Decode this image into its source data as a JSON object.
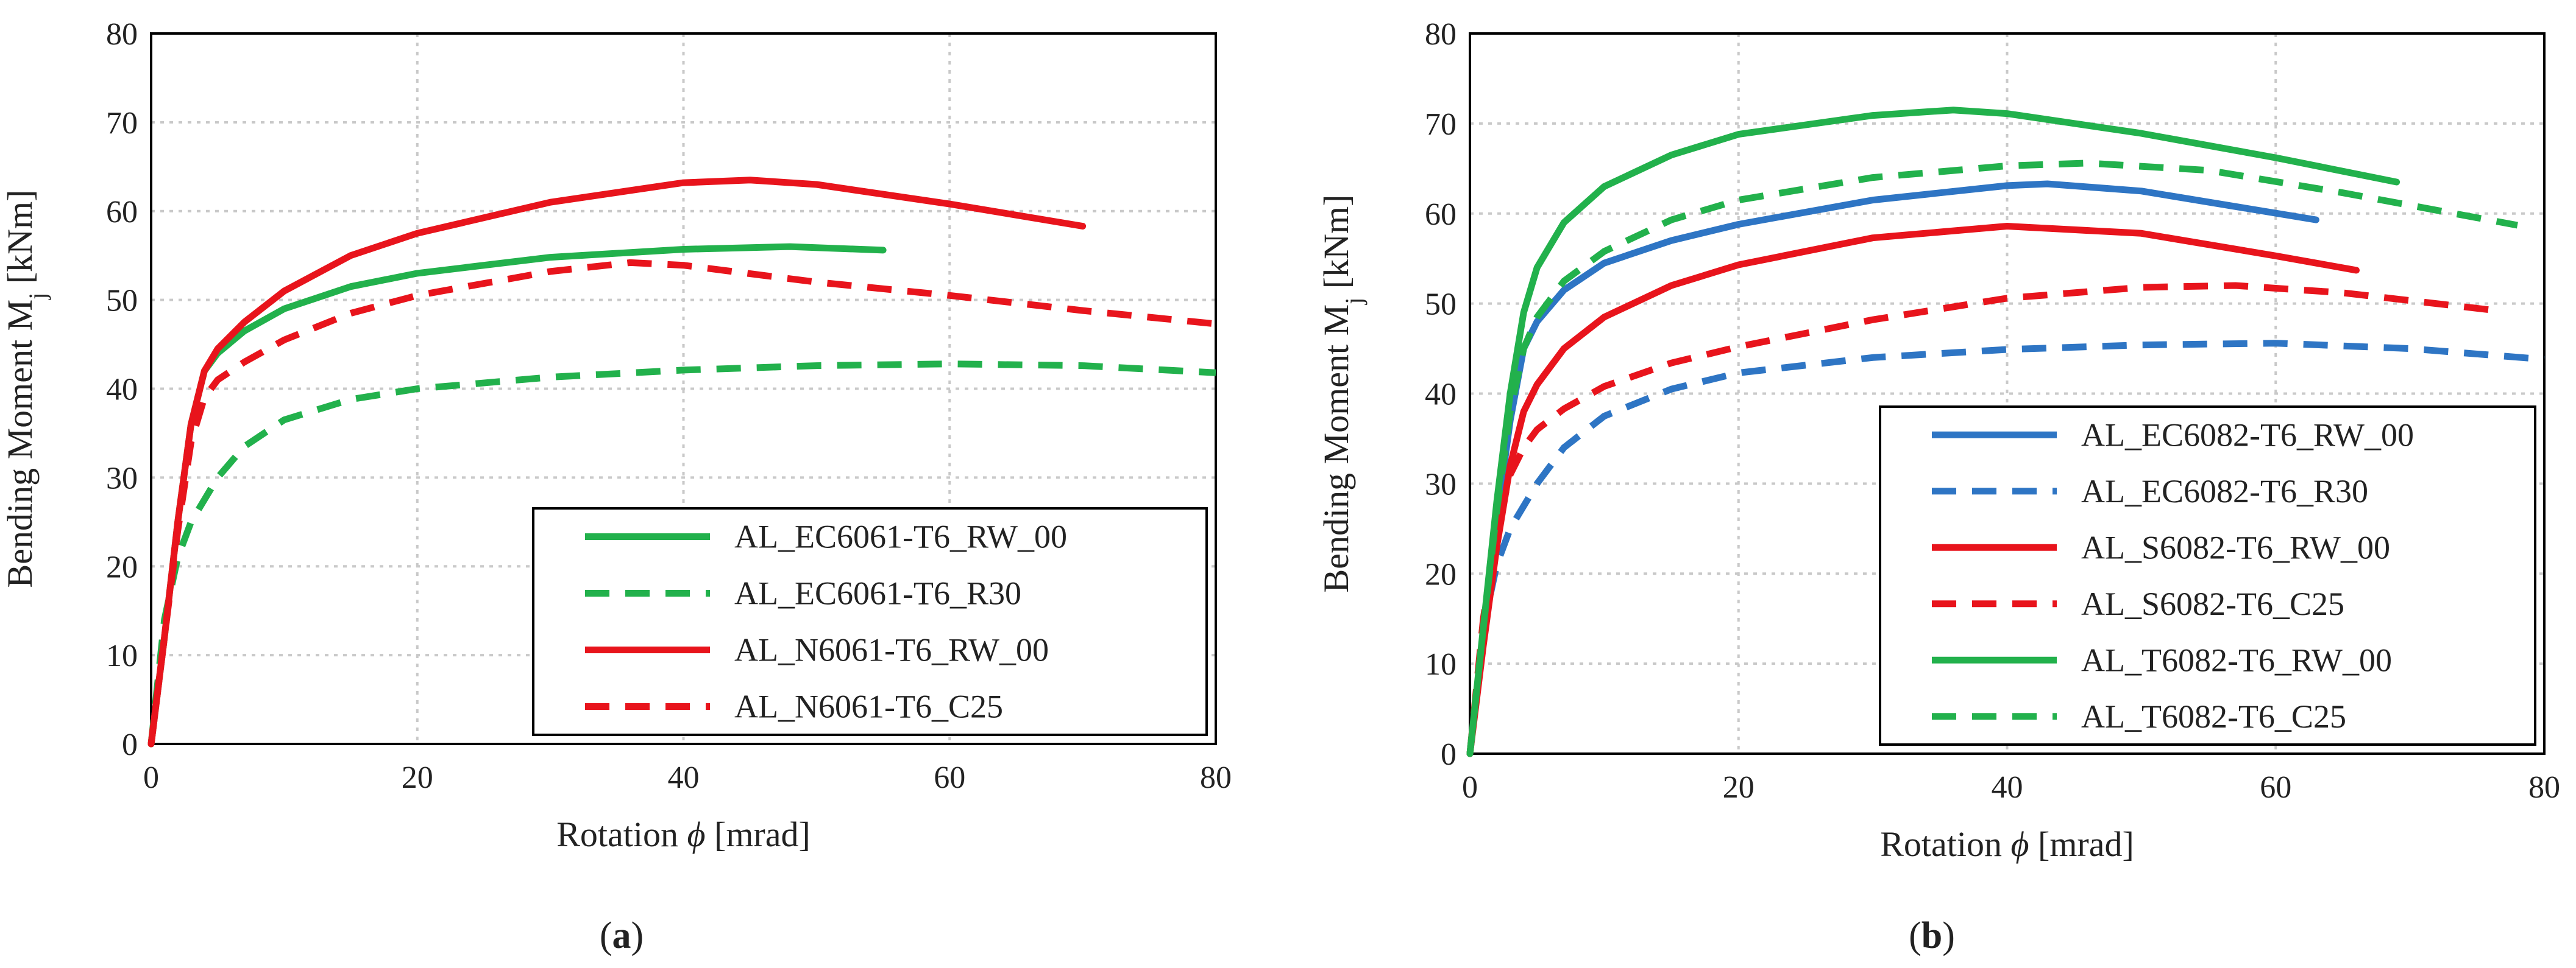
{
  "chart_data": [
    {
      "panel_label": "(a)",
      "caption_letter": "a",
      "type": "line",
      "xlabel": "Rotation ϕ [mrad]",
      "xlabel_parts": [
        "Rotation ",
        "ϕ",
        " [mrad]"
      ],
      "ylabel": "Bending Moment Mj [kNm]",
      "ylabel_parts": [
        "Bending Moment M",
        "j",
        " [kNm]"
      ],
      "xlim": [
        0,
        80
      ],
      "ylim": [
        0,
        80
      ],
      "xticks": [
        0,
        20,
        40,
        60,
        80
      ],
      "xtick_labels": [
        "0",
        "20",
        "40",
        "60",
        "80"
      ],
      "yticks": [
        0,
        10,
        20,
        30,
        40,
        50,
        60,
        70,
        80
      ],
      "ytick_labels": [
        "0",
        "10",
        "20",
        "30",
        "40",
        "50",
        "60",
        "70",
        "80"
      ],
      "grid": true,
      "legend_position": "bottom-right",
      "series": [
        {
          "name": "AL_EC6061-T6_RW_00",
          "color": "#22b14c",
          "dash": "solid",
          "x": [
            0,
            1,
            2,
            3,
            4,
            5,
            7,
            10,
            15,
            20,
            30,
            40,
            48,
            55
          ],
          "y": [
            0,
            12,
            25,
            36,
            42,
            44,
            46.5,
            49,
            51.5,
            53,
            54.8,
            55.7,
            56,
            55.6
          ]
        },
        {
          "name": "AL_EC6061-T6_R30",
          "color": "#22b14c",
          "dash": "dashed",
          "x": [
            0,
            1,
            2,
            3,
            5,
            7,
            10,
            15,
            20,
            30,
            40,
            50,
            60,
            70,
            80
          ],
          "y": [
            0,
            14,
            21,
            25,
            30,
            33.5,
            36.5,
            38.8,
            40,
            41.3,
            42.1,
            42.6,
            42.8,
            42.6,
            41.8
          ]
        },
        {
          "name": "AL_N6061-T6_RW_00",
          "color": "#e8141c",
          "dash": "solid",
          "x": [
            0,
            1,
            2,
            3,
            4,
            5,
            7,
            10,
            15,
            20,
            30,
            40,
            45,
            50,
            60,
            70
          ],
          "y": [
            0,
            12,
            25,
            36,
            42,
            44.5,
            47.5,
            51,
            55,
            57.5,
            61,
            63.2,
            63.5,
            63,
            60.8,
            58.3
          ]
        },
        {
          "name": "AL_N6061-T6_C25",
          "color": "#e8141c",
          "dash": "dashed",
          "x": [
            0,
            1,
            2,
            3,
            4,
            5,
            7,
            10,
            15,
            20,
            30,
            36,
            40,
            50,
            60,
            70,
            80
          ],
          "y": [
            0,
            12,
            24,
            34,
            39,
            41,
            43,
            45.5,
            48.5,
            50.5,
            53.2,
            54.2,
            53.9,
            52,
            50.5,
            48.8,
            47.3
          ]
        }
      ]
    },
    {
      "panel_label": "(b)",
      "caption_letter": "b",
      "type": "line",
      "xlabel": "Rotation ϕ [mrad]",
      "xlabel_parts": [
        "Rotation ",
        "ϕ",
        " [mrad]"
      ],
      "ylabel": "Bending Moment Mj [kNm]",
      "ylabel_parts": [
        "Bending Moment M",
        "j",
        " [kNm]"
      ],
      "xlim": [
        0,
        80
      ],
      "ylim": [
        0,
        80
      ],
      "xticks": [
        0,
        20,
        40,
        60,
        80
      ],
      "xtick_labels": [
        "0",
        "20",
        "40",
        "60",
        "80"
      ],
      "yticks": [
        0,
        10,
        20,
        30,
        40,
        50,
        60,
        70,
        80
      ],
      "ytick_labels": [
        "0",
        "10",
        "20",
        "30",
        "40",
        "50",
        "60",
        "70",
        "80"
      ],
      "grid": true,
      "legend_position": "bottom-right",
      "series": [
        {
          "name": "AL_EC6082-T6_RW_00",
          "color": "#2e75c4",
          "dash": "solid",
          "x": [
            0,
            1,
            2,
            3,
            4,
            5,
            7,
            10,
            15,
            20,
            30,
            40,
            43,
            50,
            63
          ],
          "y": [
            0,
            13,
            26,
            37,
            45,
            48,
            51.5,
            54.5,
            57,
            58.8,
            61.5,
            63.1,
            63.3,
            62.5,
            59.3
          ]
        },
        {
          "name": "AL_EC6082-T6_R30",
          "color": "#2e75c4",
          "dash": "dashed",
          "x": [
            0,
            1,
            2,
            3,
            5,
            7,
            10,
            15,
            20,
            30,
            40,
            50,
            60,
            70,
            80
          ],
          "y": [
            0,
            14,
            21,
            25,
            30,
            34,
            37.5,
            40.5,
            42.3,
            44,
            44.9,
            45.4,
            45.6,
            45,
            43.8
          ]
        },
        {
          "name": "AL_S6082-T6_RW_00",
          "color": "#e8141c",
          "dash": "solid",
          "x": [
            0,
            1,
            2,
            3,
            4,
            5,
            7,
            10,
            15,
            20,
            30,
            40,
            50,
            60,
            66
          ],
          "y": [
            0,
            12,
            23,
            32,
            38,
            41,
            45,
            48.5,
            52,
            54.3,
            57.3,
            58.6,
            57.8,
            55.3,
            53.7
          ]
        },
        {
          "name": "AL_S6082-T6_C25",
          "color": "#e8141c",
          "dash": "dashed",
          "x": [
            0,
            1,
            2,
            3,
            4,
            5,
            7,
            10,
            15,
            20,
            30,
            40,
            50,
            57,
            65,
            76
          ],
          "y": [
            0,
            15,
            25,
            31,
            34,
            36,
            38.3,
            40.8,
            43.4,
            45.2,
            48.2,
            50.6,
            51.8,
            52,
            51.2,
            49.3
          ]
        },
        {
          "name": "AL_T6082-T6_RW_00",
          "color": "#22b14c",
          "dash": "solid",
          "x": [
            0,
            1,
            2,
            3,
            4,
            5,
            7,
            10,
            15,
            20,
            30,
            36,
            40,
            50,
            60,
            69
          ],
          "y": [
            0,
            14,
            28,
            40,
            49,
            54,
            59,
            63,
            66.5,
            68.8,
            70.9,
            71.5,
            71.1,
            68.9,
            66.2,
            63.5
          ]
        },
        {
          "name": "AL_T6082-T6_C25",
          "color": "#22b14c",
          "dash": "dashed",
          "x": [
            0,
            1,
            2,
            3,
            4,
            5,
            7,
            10,
            15,
            20,
            30,
            40,
            46,
            55,
            65,
            78
          ],
          "y": [
            0,
            14,
            27,
            38,
            45,
            48.5,
            52.5,
            55.8,
            59.3,
            61.5,
            64,
            65.3,
            65.6,
            64.8,
            62.3,
            58.7
          ]
        }
      ]
    }
  ]
}
